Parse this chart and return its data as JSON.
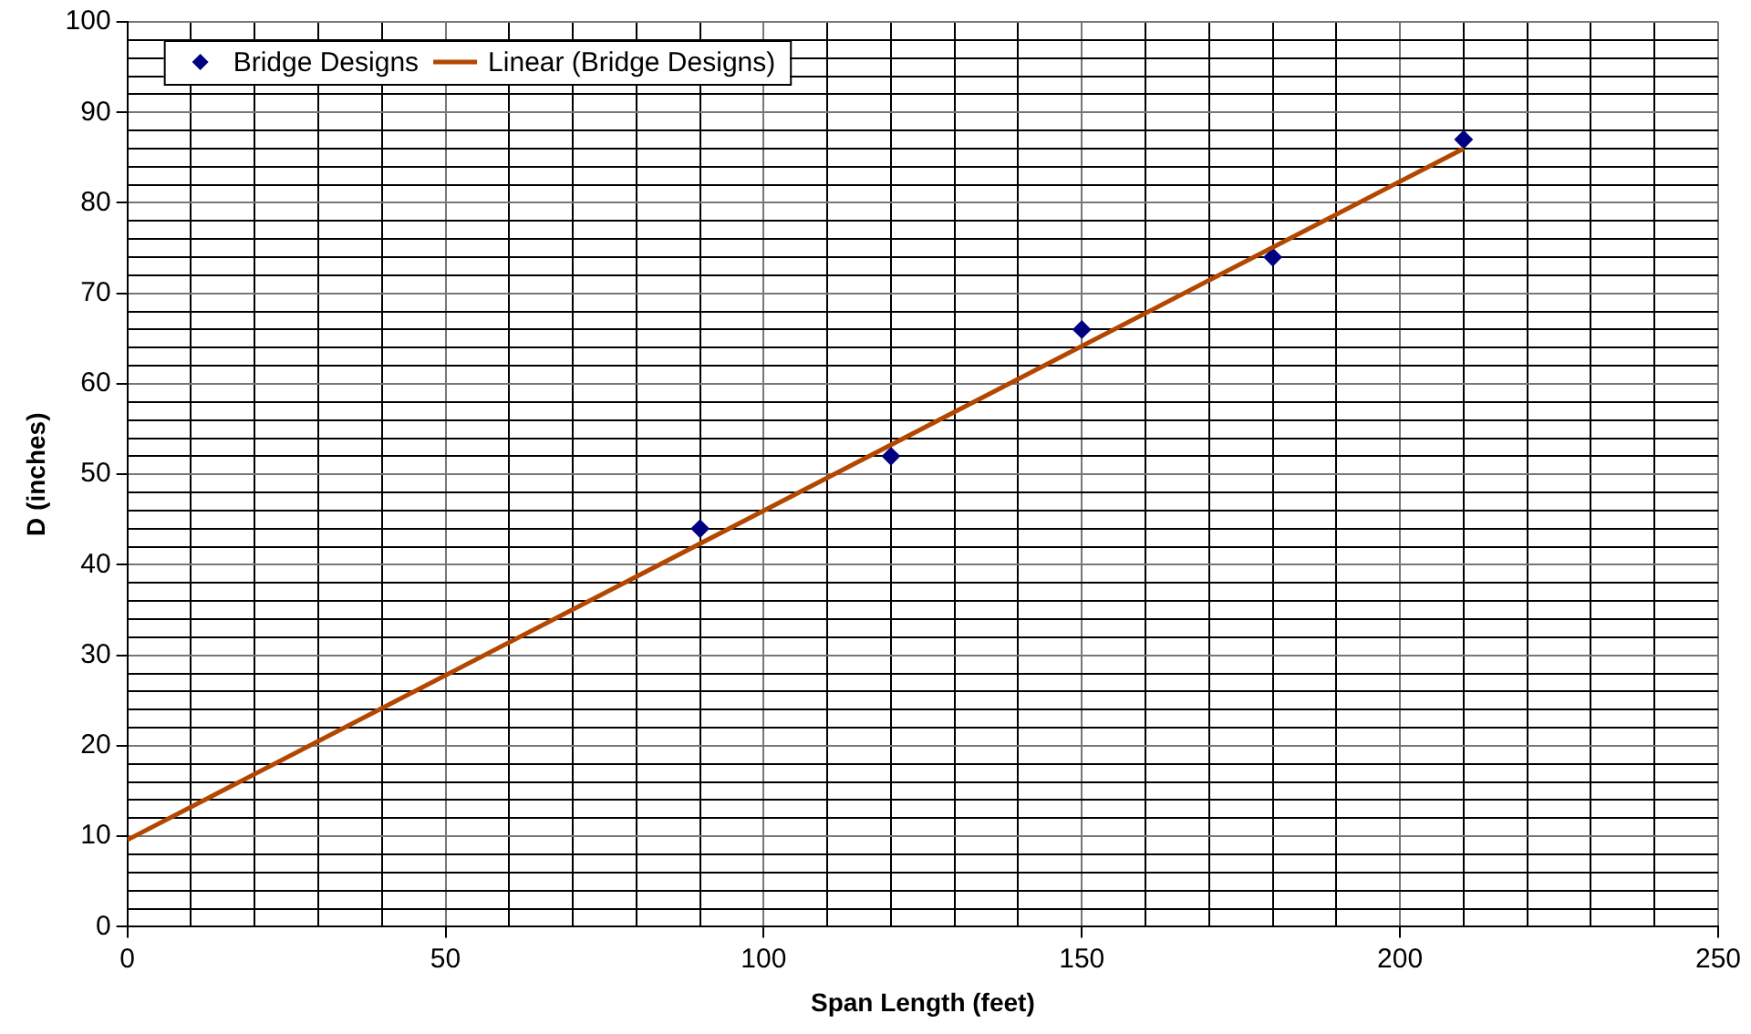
{
  "chart_data": {
    "type": "scatter",
    "xlabel": "Span Length (feet)",
    "ylabel": "D (inches)",
    "xlim": [
      0,
      250
    ],
    "ylim": [
      0,
      100
    ],
    "xticks": [
      0,
      {
        "value": 10,
        "label": null
      },
      {
        "value": 20,
        "label": null
      },
      {
        "value": 30,
        "label": null
      },
      {
        "value": 40,
        "label": null
      },
      50,
      {
        "value": 60,
        "label": null
      },
      {
        "value": 70,
        "label": null
      },
      {
        "value": 80,
        "label": null
      },
      {
        "value": 90,
        "label": null
      },
      100,
      {
        "value": 110,
        "label": null
      },
      {
        "value": 120,
        "label": null
      },
      {
        "value": 130,
        "label": null
      },
      {
        "value": 140,
        "label": null
      },
      150,
      {
        "value": 160,
        "label": null
      },
      {
        "value": 170,
        "label": null
      },
      {
        "value": 180,
        "label": null
      },
      {
        "value": 190,
        "label": null
      },
      200,
      {
        "value": 210,
        "label": null
      },
      {
        "value": 220,
        "label": null
      },
      {
        "value": 230,
        "label": null
      },
      {
        "value": 240,
        "label": null
      },
      250
    ],
    "yticks": [
      0,
      {
        "value": 2,
        "label": null
      },
      {
        "value": 4,
        "label": null
      },
      {
        "value": 6,
        "label": null
      },
      {
        "value": 8,
        "label": null
      },
      10,
      {
        "value": 12,
        "label": null
      },
      {
        "value": 14,
        "label": null
      },
      {
        "value": 16,
        "label": null
      },
      {
        "value": 18,
        "label": null
      },
      20,
      {
        "value": 22,
        "label": null
      },
      {
        "value": 24,
        "label": null
      },
      {
        "value": 26,
        "label": null
      },
      {
        "value": 28,
        "label": null
      },
      30,
      {
        "value": 32,
        "label": null
      },
      {
        "value": 34,
        "label": null
      },
      {
        "value": 36,
        "label": null
      },
      {
        "value": 38,
        "label": null
      },
      40,
      {
        "value": 42,
        "label": null
      },
      {
        "value": 44,
        "label": null
      },
      {
        "value": 46,
        "label": null
      },
      {
        "value": 48,
        "label": null
      },
      50,
      {
        "value": 52,
        "label": null
      },
      {
        "value": 54,
        "label": null
      },
      {
        "value": 56,
        "label": null
      },
      {
        "value": 58,
        "label": null
      },
      60,
      {
        "value": 62,
        "label": null
      },
      {
        "value": 64,
        "label": null
      },
      {
        "value": 66,
        "label": null
      },
      {
        "value": 68,
        "label": null
      },
      70,
      {
        "value": 72,
        "label": null
      },
      {
        "value": 74,
        "label": null
      },
      {
        "value": 76,
        "label": null
      },
      {
        "value": 78,
        "label": null
      },
      80,
      {
        "value": 82,
        "label": null
      },
      {
        "value": 84,
        "label": null
      },
      {
        "value": 86,
        "label": null
      },
      {
        "value": 88,
        "label": null
      },
      90,
      {
        "value": 92,
        "label": null
      },
      {
        "value": 94,
        "label": null
      },
      {
        "value": 96,
        "label": null
      },
      {
        "value": 98,
        "label": null
      },
      100
    ],
    "grid": true,
    "legend": "top left",
    "marker": "diamond",
    "series": [
      {
        "name": "Bridge Designs",
        "color": "#000080",
        "x": [
          90,
          120,
          150,
          180,
          210
        ],
        "values": [
          44,
          52,
          66,
          74,
          87
        ]
      },
      {
        "name": "Linear (Bridge Designs)",
        "type": "line",
        "color": "#b34700",
        "x": [
          0,
          210
        ],
        "values": [
          9.6,
          86
        ],
        "marker": "none",
        "line_style": "solid"
      }
    ]
  }
}
